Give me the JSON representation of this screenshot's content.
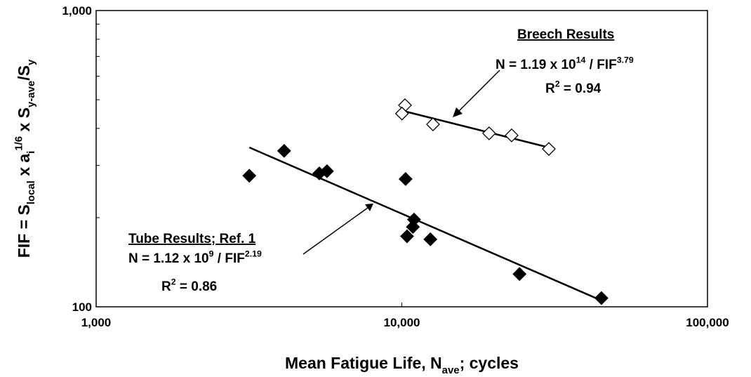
{
  "chart_data": {
    "type": "scatter",
    "xlabel": [
      "Mean Fatigue Life, N",
      {
        "sub": "ave"
      },
      ";  cycles"
    ],
    "ylabel": [
      "FIF  =  S",
      {
        "sub": "local"
      },
      "  x  a",
      {
        "sub": "i"
      },
      {
        "sup": "1/6"
      },
      "  x  S",
      {
        "sub": "y-ave"
      },
      "/S",
      {
        "sub": "y"
      }
    ],
    "xscale": "log",
    "yscale": "log",
    "xlim": [
      1000,
      100000
    ],
    "ylim": [
      100,
      1000
    ],
    "xticks": [
      {
        "value": 1000,
        "label": "1,000"
      },
      {
        "value": 10000,
        "label": "10,000"
      },
      {
        "value": 100000,
        "label": "100,000"
      }
    ],
    "yticks": [
      100,
      {
        "value": 1000,
        "label": "1,000"
      }
    ],
    "yminorticks": [
      200,
      300,
      400,
      500,
      600,
      700,
      800,
      900
    ],
    "series": [
      {
        "name": "Tube Results;  Ref. 1",
        "color": "#000000",
        "marker": "filled-diamond",
        "x": [
          3170,
          4120,
          5370,
          5690,
          10290,
          10960,
          10870,
          10400,
          12400,
          24270,
          44980
        ],
        "values": [
          277,
          336,
          282,
          287,
          270,
          197,
          186,
          173,
          169,
          129,
          107
        ],
        "equation": [
          "N = 1.12 x 10",
          {
            "sup": "9"
          },
          " / FIF",
          {
            "sup": "2.19"
          }
        ],
        "r2": [
          "R",
          {
            "sup": "2"
          },
          " = 0.86"
        ],
        "fit_x": [
          3170,
          45000
        ],
        "fit_values": [
          345,
          105
        ]
      },
      {
        "name": "Breech Results",
        "color": "#ffffff",
        "marker": "open-diamond",
        "x": [
          10240,
          10010,
          12650,
          19300,
          22870,
          30270
        ],
        "values": [
          479,
          449,
          413,
          385,
          379,
          341
        ],
        "equation": [
          "N = 1.19 x 10",
          {
            "sup": "14"
          },
          " / FIF",
          {
            "sup": "3.79"
          }
        ],
        "r2": [
          "R",
          {
            "sup": "2"
          },
          "  =  0.94"
        ],
        "fit_x": [
          10130,
          30270
        ],
        "fit_values": [
          458,
          345
        ]
      }
    ]
  }
}
